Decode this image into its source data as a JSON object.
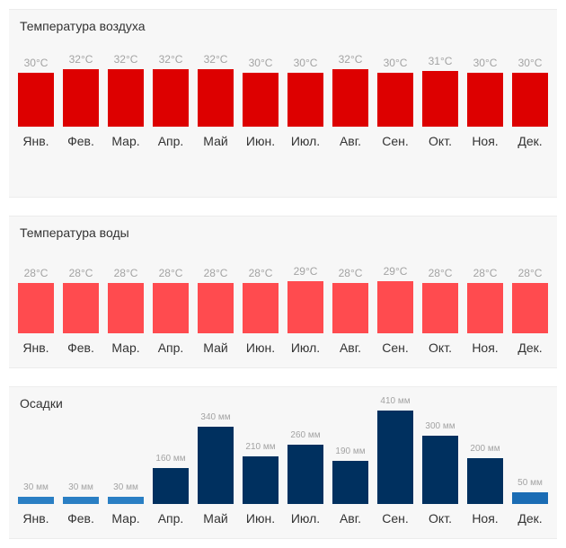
{
  "months": [
    "Янв.",
    "Фев.",
    "Мар.",
    "Апр.",
    "Май",
    "Июн.",
    "Июл.",
    "Авг.",
    "Сен.",
    "Окт.",
    "Ноя.",
    "Дек."
  ],
  "chart_data": [
    {
      "id": "air",
      "type": "bar",
      "title": "Температура воздуха",
      "categories": [
        "Янв.",
        "Фев.",
        "Мар.",
        "Апр.",
        "Май",
        "Июн.",
        "Июл.",
        "Авг.",
        "Сен.",
        "Окт.",
        "Ноя.",
        "Дек."
      ],
      "values": [
        30,
        32,
        32,
        32,
        32,
        30,
        30,
        32,
        30,
        31,
        30,
        30
      ],
      "labels": [
        "30°C",
        "32°C",
        "32°C",
        "32°C",
        "32°C",
        "30°C",
        "30°C",
        "32°C",
        "30°C",
        "31°C",
        "30°C",
        "30°C"
      ],
      "unit": "°C",
      "colors": [
        "#dd0000"
      ]
    },
    {
      "id": "water",
      "type": "bar",
      "title": "Температура воды",
      "categories": [
        "Янв.",
        "Фев.",
        "Мар.",
        "Апр.",
        "Май",
        "Июн.",
        "Июл.",
        "Авг.",
        "Сен.",
        "Окт.",
        "Ноя.",
        "Дек."
      ],
      "values": [
        28,
        28,
        28,
        28,
        28,
        28,
        29,
        28,
        29,
        28,
        28,
        28
      ],
      "labels": [
        "28°C",
        "28°C",
        "28°C",
        "28°C",
        "28°C",
        "28°C",
        "29°C",
        "28°C",
        "29°C",
        "28°C",
        "28°C",
        "28°C"
      ],
      "unit": "°C",
      "colors": [
        "#ff4b4f"
      ]
    },
    {
      "id": "rain",
      "type": "bar",
      "title": "Осадки",
      "categories": [
        "Янв.",
        "Фев.",
        "Мар.",
        "Апр.",
        "Май",
        "Июн.",
        "Июл.",
        "Авг.",
        "Сен.",
        "Окт.",
        "Ноя.",
        "Дек."
      ],
      "values": [
        30,
        30,
        30,
        160,
        340,
        210,
        260,
        190,
        410,
        300,
        200,
        50
      ],
      "labels": [
        "30 мм",
        "30 мм",
        "30 мм",
        "160 мм",
        "340 мм",
        "210 мм",
        "260 мм",
        "190 мм",
        "410 мм",
        "300 мм",
        "200 мм",
        "50 мм"
      ],
      "unit": "мм",
      "colors": [
        "#2a7fc4",
        "#2a7fc4",
        "#2a7fc4",
        "#00305f",
        "#00305f",
        "#00305f",
        "#00305f",
        "#00305f",
        "#00305f",
        "#00305f",
        "#00305f",
        "#1a6cb4"
      ]
    }
  ]
}
